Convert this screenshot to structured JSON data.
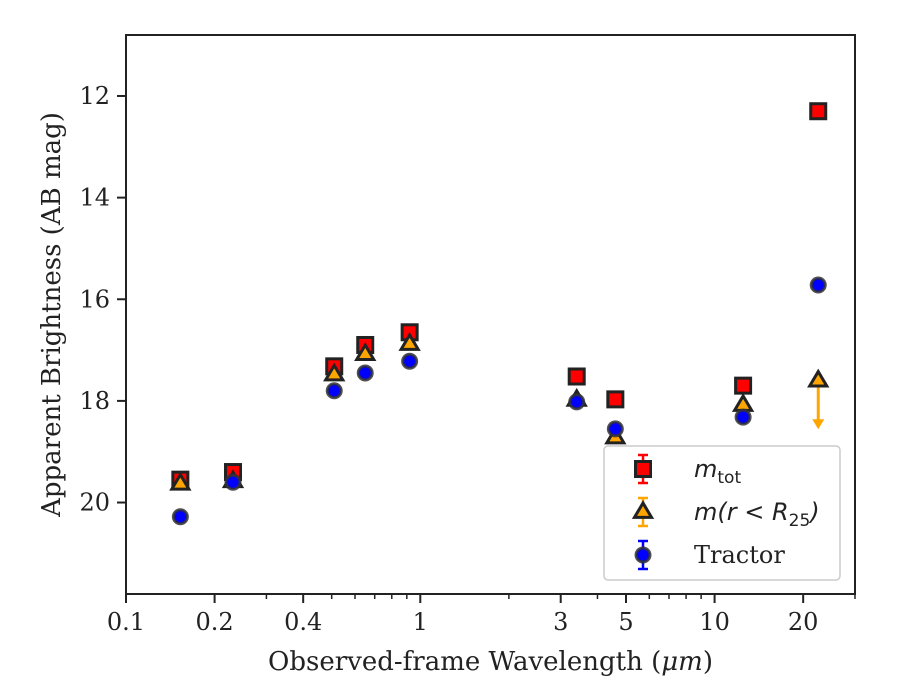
{
  "chart_data": {
    "type": "scatter",
    "xscale": "log",
    "yscale": "linear",
    "yaxis_inverted": true,
    "xlim": [
      0.1,
      30
    ],
    "ylim": [
      21.8,
      10.8
    ],
    "xlabel_prefix": "Observed-frame Wavelength (",
    "xlabel_unit": "μm",
    "xlabel_suffix": ")",
    "ylabel": "Apparent Brightness (AB mag)",
    "xticks": [
      {
        "value": 0.1,
        "label": "0.1"
      },
      {
        "value": 0.2,
        "label": "0.2"
      },
      {
        "value": 0.4,
        "label": "0.4"
      },
      {
        "value": 1,
        "label": "1"
      },
      {
        "value": 3,
        "label": "3"
      },
      {
        "value": 5,
        "label": "5"
      },
      {
        "value": 10,
        "label": "10"
      },
      {
        "value": 20,
        "label": "20"
      }
    ],
    "yticks": [
      12,
      14,
      16,
      18,
      20
    ],
    "legend_position": "lower right",
    "series": [
      {
        "name_main": "m",
        "name_sub": "tot",
        "marker": "square",
        "color": "#ff0000",
        "edge": "#222222",
        "points": [
          {
            "x": 0.153,
            "y": 19.55
          },
          {
            "x": 0.231,
            "y": 19.4
          },
          {
            "x": 0.51,
            "y": 17.32
          },
          {
            "x": 0.65,
            "y": 16.9
          },
          {
            "x": 0.92,
            "y": 16.65
          },
          {
            "x": 3.4,
            "y": 17.52
          },
          {
            "x": 4.6,
            "y": 17.97
          },
          {
            "x": 12.5,
            "y": 17.7
          },
          {
            "x": 22.5,
            "y": 12.3
          }
        ]
      },
      {
        "name_main": "m(r < R",
        "name_sub": "25",
        "name_after": ")",
        "marker": "triangle",
        "color": "#ffa500",
        "edge": "#222222",
        "points": [
          {
            "x": 0.153,
            "y": 19.63
          },
          {
            "x": 0.231,
            "y": 19.58
          },
          {
            "x": 0.51,
            "y": 17.48
          },
          {
            "x": 0.65,
            "y": 17.08
          },
          {
            "x": 0.92,
            "y": 16.88
          },
          {
            "x": 3.4,
            "y": 17.98
          },
          {
            "x": 4.6,
            "y": 18.72
          },
          {
            "x": 12.5,
            "y": 18.08
          },
          {
            "x": 22.5,
            "y": 17.6,
            "upper_limit": true,
            "arrow_to": 18.5
          }
        ]
      },
      {
        "name_main": "Tractor",
        "marker": "circle",
        "color": "#0000ff",
        "edge": "#333333",
        "points": [
          {
            "x": 0.153,
            "y": 20.28
          },
          {
            "x": 0.231,
            "y": 19.6
          },
          {
            "x": 0.51,
            "y": 17.8
          },
          {
            "x": 0.65,
            "y": 17.45
          },
          {
            "x": 0.92,
            "y": 17.22
          },
          {
            "x": 3.4,
            "y": 18.02
          },
          {
            "x": 4.6,
            "y": 18.55
          },
          {
            "x": 12.5,
            "y": 18.32
          },
          {
            "x": 22.5,
            "y": 15.72
          }
        ]
      }
    ]
  }
}
